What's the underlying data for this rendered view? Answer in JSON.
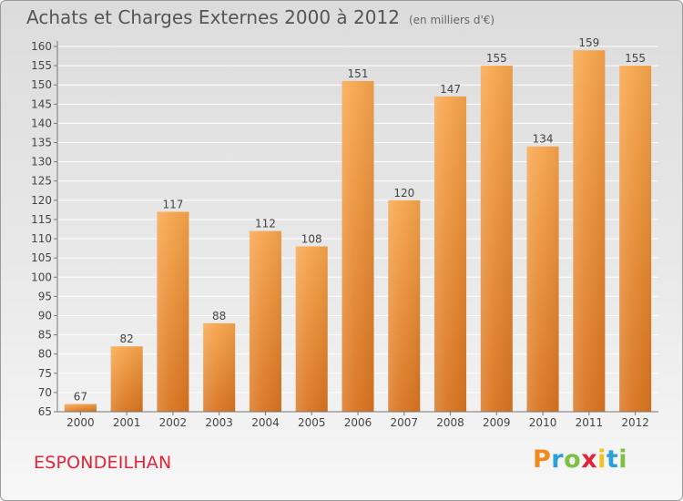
{
  "title": "Achats et Charges Externes 2000 à 2012",
  "unit": "(en milliers d'€)",
  "commune": "ESPONDEILHAN",
  "brand": {
    "letters": [
      "P",
      "r",
      "o",
      "x",
      "i",
      "t",
      "i"
    ],
    "colors": [
      "#f08a1e",
      "#2aa0d8",
      "#7cc242",
      "#e0243a",
      "#f0c419",
      "#2aa0d8",
      "#7cc242"
    ]
  },
  "colors": {
    "bar_light": "#f7a54c",
    "bar_dark": "#d9741f",
    "axis": "#777777",
    "grid": "#ffffff"
  },
  "chart_data": {
    "type": "bar",
    "categories": [
      "2000",
      "2001",
      "2002",
      "2003",
      "2004",
      "2005",
      "2006",
      "2007",
      "2008",
      "2009",
      "2010",
      "2011",
      "2012"
    ],
    "values": [
      67,
      82,
      117,
      88,
      112,
      108,
      151,
      120,
      147,
      155,
      134,
      159,
      155
    ],
    "title": "Achats et Charges Externes 2000 à 2012",
    "xlabel": "",
    "ylabel": "",
    "ylim": [
      65,
      160
    ],
    "yticks": [
      65,
      70,
      75,
      80,
      85,
      90,
      95,
      100,
      105,
      110,
      115,
      120,
      125,
      130,
      135,
      140,
      145,
      150,
      155,
      160
    ],
    "grid": true,
    "data_labels": true,
    "legend": "none"
  }
}
